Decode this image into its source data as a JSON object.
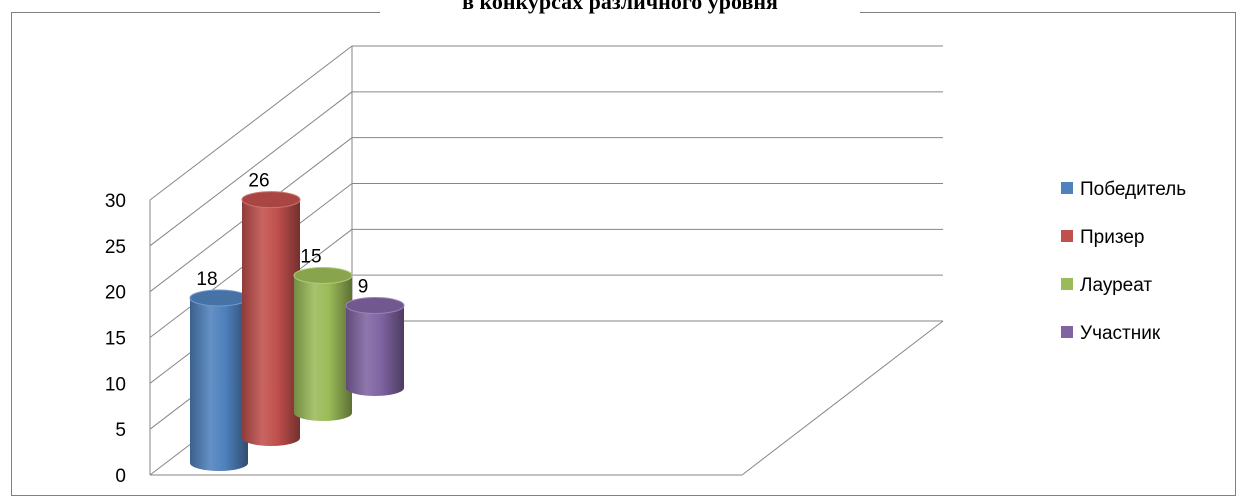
{
  "chart_data": {
    "type": "bar",
    "title": "в конкурсах различного уровня",
    "categories": [
      ""
    ],
    "series": [
      {
        "name": "Победитель",
        "values": [
          18
        ],
        "color": "#4f81bd"
      },
      {
        "name": "Призер",
        "values": [
          26
        ],
        "color": "#c0504d"
      },
      {
        "name": "Лауреат",
        "values": [
          15
        ],
        "color": "#9bbb59"
      },
      {
        "name": "Участник",
        "values": [
          9
        ],
        "color": "#8064a2"
      }
    ],
    "yticks": [
      "0",
      "5",
      "10",
      "15",
      "20",
      "25",
      "30"
    ],
    "ylim": [
      0,
      30
    ],
    "grid": true,
    "legend": "right",
    "style": "3d-cylinder"
  }
}
